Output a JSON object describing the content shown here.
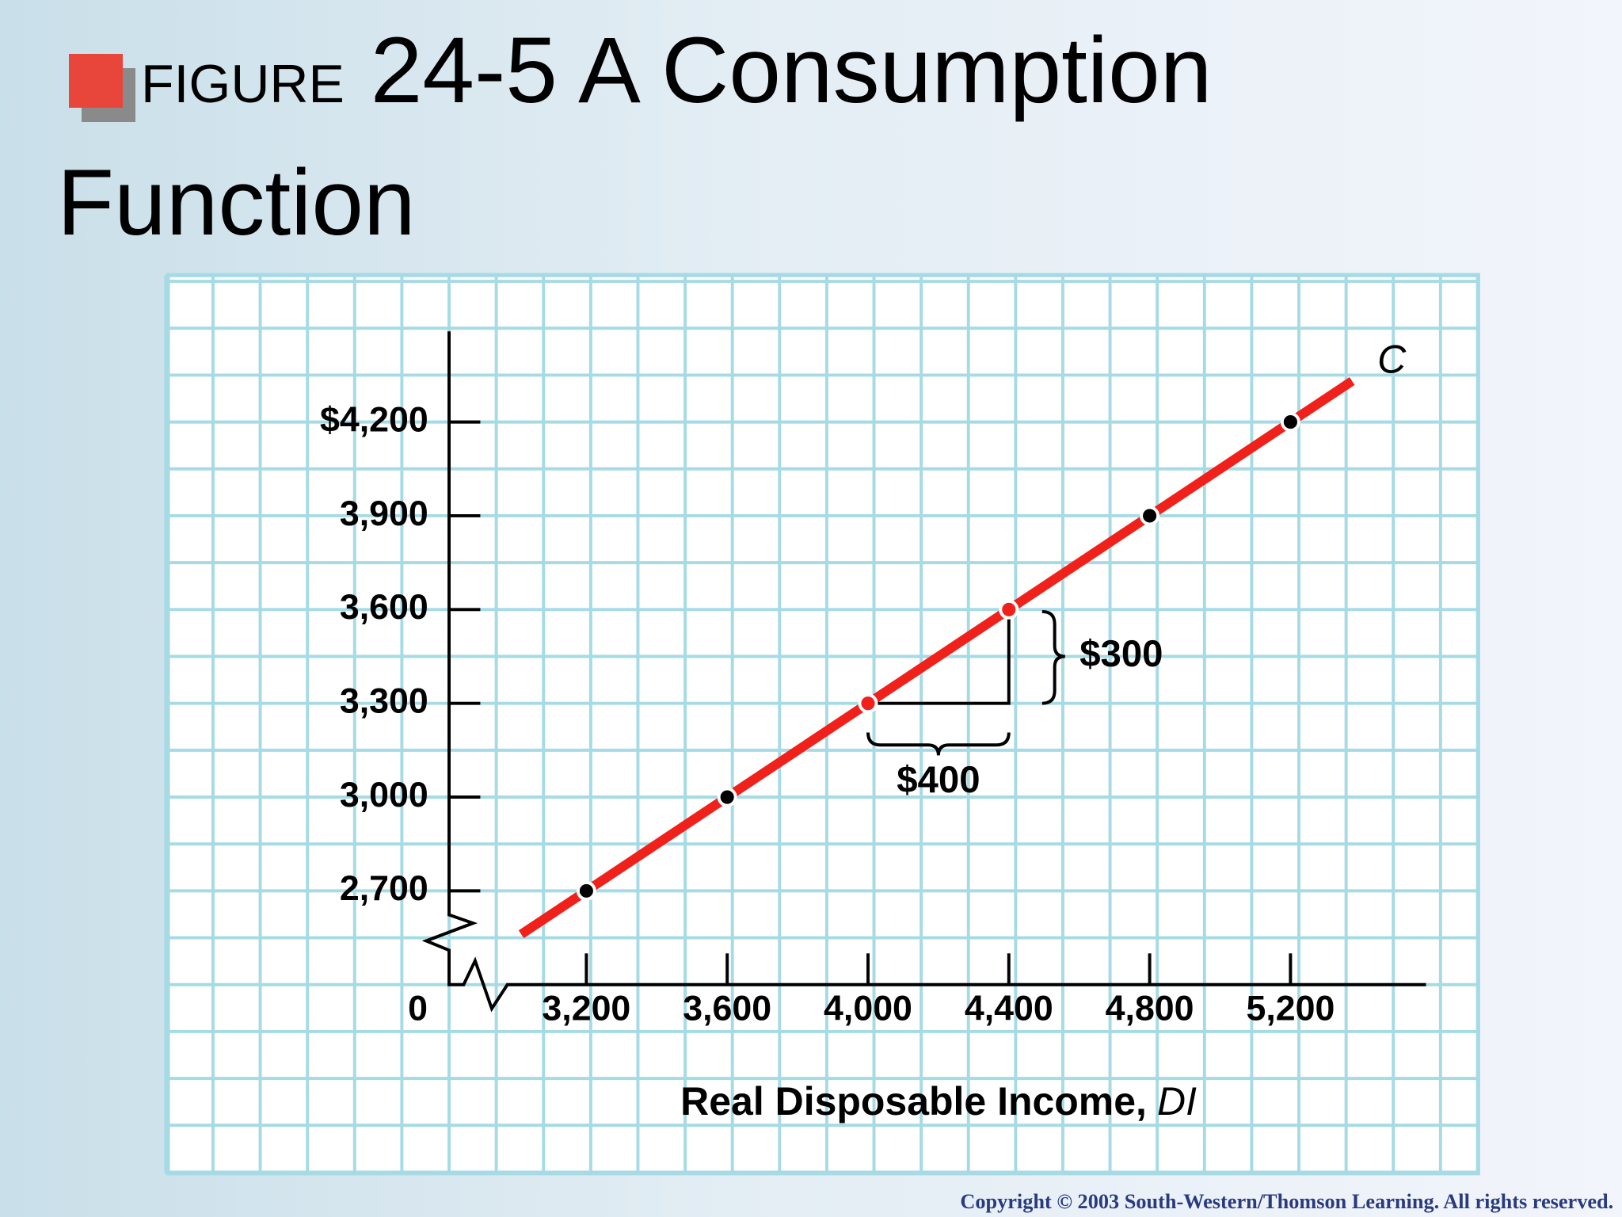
{
  "chart_data": {
    "type": "line",
    "title_prefix": "FIGURE",
    "title": "24-5 A Consumption Function",
    "xlabel": "Real Disposable Income,",
    "xlabel_var": "DI",
    "origin_label": "0",
    "x": [
      3200,
      3600,
      4000,
      4400,
      4800,
      5200
    ],
    "values": [
      2700,
      3000,
      3300,
      3600,
      3900,
      4200
    ],
    "point_colors": [
      "#000000",
      "#000000",
      "#f0201a",
      "#f0201a",
      "#000000",
      "#000000"
    ],
    "series": [
      {
        "name": "C",
        "color": "#f0201a",
        "x": [
          3015,
          5375
        ],
        "values": [
          2561,
          4331
        ]
      }
    ],
    "xlim": [
      2810,
      5585
    ],
    "ylim": [
      2400,
      4490
    ],
    "xticks": [
      {
        "value": 3200,
        "label": "3,200"
      },
      {
        "value": 3600,
        "label": "3,600"
      },
      {
        "value": 4000,
        "label": "4,000"
      },
      {
        "value": 4400,
        "label": "4,400"
      },
      {
        "value": 4800,
        "label": "4,800"
      },
      {
        "value": 5200,
        "label": "5,200"
      }
    ],
    "yticks": [
      {
        "value": 2700,
        "label": "2,700"
      },
      {
        "value": 3000,
        "label": "3,000"
      },
      {
        "value": 3300,
        "label": "3,300"
      },
      {
        "value": 3600,
        "label": "3,600"
      },
      {
        "value": 3900,
        "label": "3,900"
      },
      {
        "value": 4200,
        "label": "$4,200"
      }
    ],
    "annotations": [
      {
        "text": "$300"
      },
      {
        "text": "$400"
      }
    ],
    "copyright": "Copyright © 2003 South-Western/Thomson Learning. All rights reserved."
  }
}
